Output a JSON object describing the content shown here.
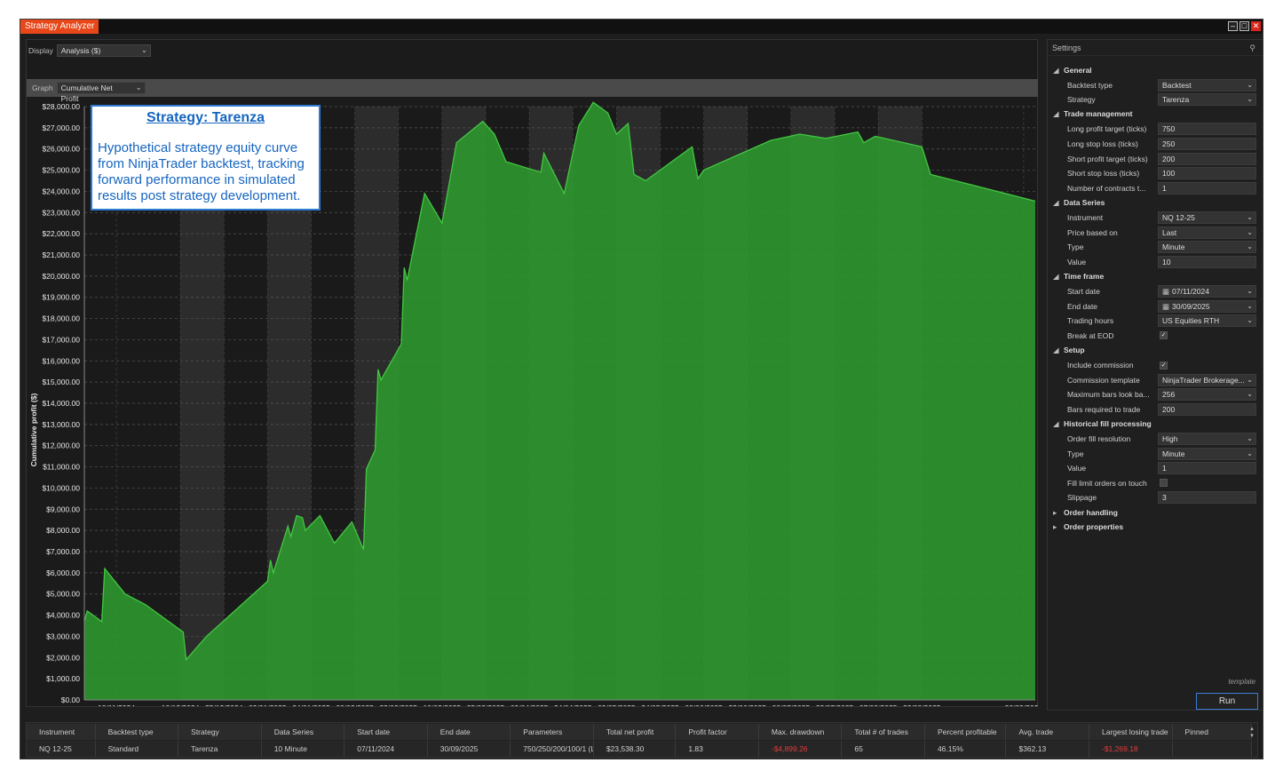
{
  "window": {
    "title": "Strategy Analyzer"
  },
  "toolbar": {
    "display_label": "Display",
    "display_value": "Analysis ($)",
    "graph_label": "Graph",
    "graph_value": "Cumulative Net Profit"
  },
  "callout": {
    "title": "Strategy: Tarenza",
    "body": "Hypothetical strategy equity curve from NinjaTrader backtest, tracking forward performance in simulated results post strategy development."
  },
  "chart_data": {
    "type": "area",
    "title": "",
    "xlabel": "Date",
    "ylabel": "Cumulative profit ($)",
    "ylim": [
      0,
      28000
    ],
    "yticks": [
      "$0.00",
      "$1,000.00",
      "$2,000.00",
      "$3,000.00",
      "$4,000.00",
      "$5,000.00",
      "$6,000.00",
      "$7,000.00",
      "$8,000.00",
      "$9,000.00",
      "$10,000.00",
      "$11,000.00",
      "$12,000.00",
      "$13,000.00",
      "$14,000.00",
      "$15,000.00",
      "$16,000.00",
      "$17,000.00",
      "$18,000.00",
      "$19,000.00",
      "$20,000.00",
      "$21,000.00",
      "$22,000.00",
      "$23,000.00",
      "$24,000.00",
      "$25,000.00",
      "$26,000.00",
      "$27,000.00",
      "$28,000.00"
    ],
    "xticks": [
      "18/11/2024",
      "10/12/2024",
      "25/12/2024",
      "09/01/2025",
      "24/01/2025",
      "08/02/2025",
      "23/02/2025",
      "10/03/2025",
      "25/03/2025",
      "09/04/2025",
      "24/04/2025",
      "09/05/2025",
      "24/05/2025",
      "08/06/2025",
      "23/06/2025",
      "08/07/2025",
      "23/07/2025",
      "07/08/2025",
      "22/08/2025",
      "26/09/2025"
    ],
    "grid": true,
    "color": "#2e9a2e",
    "line_color": "#42c742",
    "series": [
      {
        "values": [
          [
            "07/11/2024",
            3700
          ],
          [
            "08/11/2024",
            4200
          ],
          [
            "13/11/2024",
            3700
          ],
          [
            "14/11/2024",
            6200
          ],
          [
            "21/11/2024",
            5000
          ],
          [
            "28/11/2024",
            4500
          ],
          [
            "11/12/2024",
            3200
          ],
          [
            "12/12/2024",
            1900
          ],
          [
            "19/12/2024",
            3000
          ],
          [
            "09/01/2025",
            5600
          ],
          [
            "10/01/2025",
            6600
          ],
          [
            "11/01/2025",
            6000
          ],
          [
            "16/01/2025",
            8200
          ],
          [
            "17/01/2025",
            7700
          ],
          [
            "19/01/2025",
            8700
          ],
          [
            "21/01/2025",
            8600
          ],
          [
            "22/01/2025",
            8000
          ],
          [
            "27/01/2025",
            8700
          ],
          [
            "01/02/2025",
            7400
          ],
          [
            "07/02/2025",
            8400
          ],
          [
            "11/02/2025",
            7100
          ],
          [
            "12/02/2025",
            10900
          ],
          [
            "15/02/2025",
            11800
          ],
          [
            "16/02/2025",
            15600
          ],
          [
            "17/02/2025",
            15100
          ],
          [
            "24/02/2025",
            16800
          ],
          [
            "25/02/2025",
            20400
          ],
          [
            "26/02/2025",
            19800
          ],
          [
            "04/03/2025",
            23900
          ],
          [
            "10/03/2025",
            22500
          ],
          [
            "15/03/2025",
            26300
          ],
          [
            "24/03/2025",
            27300
          ],
          [
            "28/03/2025",
            26700
          ],
          [
            "01/04/2025",
            25400
          ],
          [
            "13/04/2025",
            24900
          ],
          [
            "14/04/2025",
            25800
          ],
          [
            "21/04/2025",
            23900
          ],
          [
            "26/04/2025",
            27100
          ],
          [
            "01/05/2025",
            28200
          ],
          [
            "06/05/2025",
            27700
          ],
          [
            "09/05/2025",
            26700
          ],
          [
            "13/05/2025",
            27200
          ],
          [
            "15/05/2025",
            24800
          ],
          [
            "19/05/2025",
            24500
          ],
          [
            "04/06/2025",
            26100
          ],
          [
            "06/06/2025",
            24600
          ],
          [
            "08/06/2025",
            25000
          ],
          [
            "01/07/2025",
            26400
          ],
          [
            "11/07/2025",
            26700
          ],
          [
            "20/07/2025",
            26500
          ],
          [
            "31/07/2025",
            26800
          ],
          [
            "02/08/2025",
            26300
          ],
          [
            "06/08/2025",
            26600
          ],
          [
            "22/08/2025",
            26100
          ],
          [
            "25/08/2025",
            24800
          ],
          [
            "30/09/2025",
            23538
          ]
        ]
      }
    ]
  },
  "settings": {
    "header": "Settings",
    "sections": [
      {
        "title": "General",
        "arrow": "◢",
        "items": [
          {
            "label": "Backtest type",
            "value": "Backtest",
            "kind": "dropdown"
          },
          {
            "label": "Strategy",
            "value": "Tarenza",
            "kind": "dropdown"
          }
        ]
      },
      {
        "title": "Trade management",
        "arrow": "◢",
        "items": [
          {
            "label": "Long profit target (ticks)",
            "value": "750",
            "kind": "text"
          },
          {
            "label": "Long stop loss (ticks)",
            "value": "250",
            "kind": "text"
          },
          {
            "label": "Short profit target (ticks)",
            "value": "200",
            "kind": "text"
          },
          {
            "label": "Short stop loss (ticks)",
            "value": "100",
            "kind": "text"
          },
          {
            "label": "Number of contracts t...",
            "value": "1",
            "kind": "text"
          }
        ]
      },
      {
        "title": "Data Series",
        "arrow": "◢",
        "items": [
          {
            "label": "Instrument",
            "value": "NQ 12-25",
            "kind": "dropdown"
          },
          {
            "label": "Price based on",
            "value": "Last",
            "kind": "dropdown"
          },
          {
            "label": "Type",
            "value": "Minute",
            "kind": "dropdown"
          },
          {
            "label": "Value",
            "value": "10",
            "kind": "text"
          }
        ]
      },
      {
        "title": "Time frame",
        "arrow": "◢",
        "items": [
          {
            "label": "Start date",
            "value": "07/11/2024",
            "kind": "date"
          },
          {
            "label": "End date",
            "value": "30/09/2025",
            "kind": "date"
          },
          {
            "label": "Trading hours",
            "value": "US Equities RTH",
            "kind": "dropdown"
          },
          {
            "label": "Break at EOD",
            "value": "✓",
            "kind": "check"
          }
        ]
      },
      {
        "title": "Setup",
        "arrow": "◢",
        "items": [
          {
            "label": "Include commission",
            "value": "✓",
            "kind": "check"
          },
          {
            "label": "Commission template",
            "value": "NinjaTrader Brokerage...",
            "kind": "dropdown"
          },
          {
            "label": "Maximum bars look ba...",
            "value": "256",
            "kind": "dropdown"
          },
          {
            "label": "Bars required to trade",
            "value": "200",
            "kind": "text"
          }
        ]
      },
      {
        "title": "Historical fill processing",
        "arrow": "◢",
        "items": [
          {
            "label": "Order fill resolution",
            "value": "High",
            "kind": "dropdown"
          },
          {
            "label": "Type",
            "value": "Minute",
            "kind": "dropdown"
          },
          {
            "label": "Value",
            "value": "1",
            "kind": "text"
          },
          {
            "label": "Fill limit orders on touch",
            "value": "",
            "kind": "check"
          },
          {
            "label": "Slippage",
            "value": "3",
            "kind": "text"
          }
        ]
      },
      {
        "title": "Order handling",
        "arrow": "▸",
        "items": []
      },
      {
        "title": "Order properties",
        "arrow": "▸",
        "items": []
      }
    ],
    "template_label": "template",
    "run_label": "Run"
  },
  "results": {
    "columns": [
      "Instrument",
      "Backtest type",
      "Strategy",
      "Data Series",
      "Start date",
      "End date",
      "Parameters",
      "Total net profit",
      "Profit factor",
      "Max. drawdown",
      "Total # of trades",
      "Percent profitable",
      "Avg. trade",
      "Largest losing trade",
      "Pinned"
    ],
    "rows": [
      [
        "NQ 12-25",
        "Standard",
        "Tarenza",
        "10 Minute",
        "07/11/2024",
        "30/09/2025",
        "750/250/200/100/1 (Lo",
        "$23,538.30",
        "1.83",
        "-$4,899.26",
        "65",
        "46.15%",
        "$362.13",
        "-$1,269.18",
        ""
      ]
    ],
    "negative_color": "#e23b3b"
  }
}
